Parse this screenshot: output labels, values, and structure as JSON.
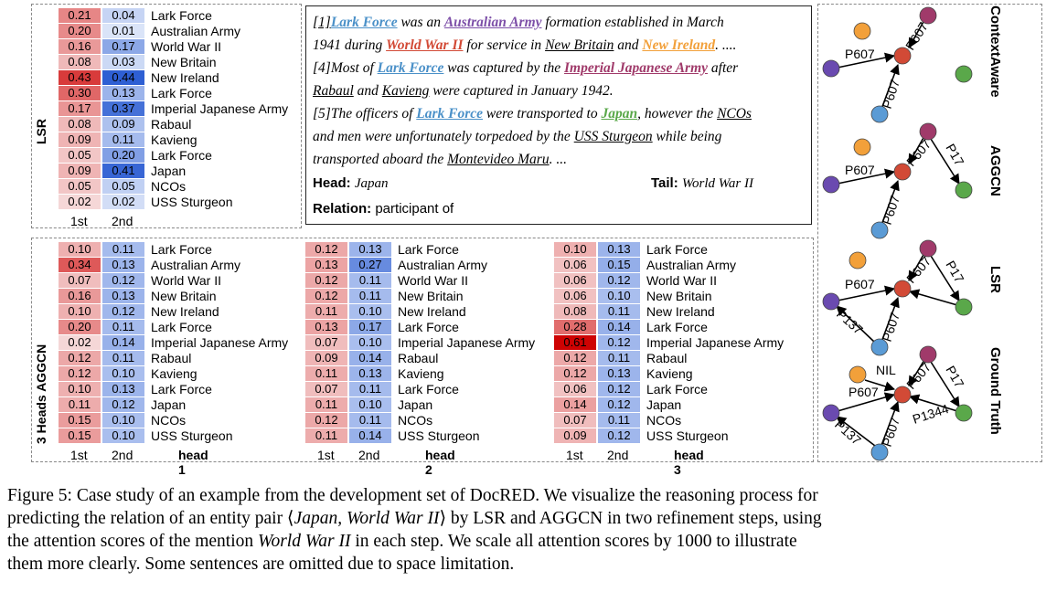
{
  "colors": {
    "lark": "#4a90c8",
    "australian": "#7d4fa8",
    "ww2": "#d24a36",
    "new_ireland": "#f2a03a",
    "ija": "#a03a6a",
    "japan": "#5aa84a"
  },
  "heatmaps": {
    "lsr": {
      "side_label": "LSR",
      "col_headers": [
        "1st",
        "2nd"
      ],
      "head_title": "",
      "rows": [
        {
          "label": "Lark Force",
          "v1": "0.21",
          "v2": "0.04"
        },
        {
          "label": "Australian Army",
          "v1": "0.20",
          "v2": "0.01"
        },
        {
          "label": "World War II",
          "v1": "0.16",
          "v2": "0.17"
        },
        {
          "label": "New Britain",
          "v1": "0.08",
          "v2": "0.03"
        },
        {
          "label": "New Ireland",
          "v1": "0.43",
          "v2": "0.44"
        },
        {
          "label": "Lark Force",
          "v1": "0.30",
          "v2": "0.13"
        },
        {
          "label": "Imperial Japanese Army",
          "v1": "0.17",
          "v2": "0.37"
        },
        {
          "label": "Rabaul",
          "v1": "0.08",
          "v2": "0.09"
        },
        {
          "label": "Kavieng",
          "v1": "0.09",
          "v2": "0.11"
        },
        {
          "label": "Lark Force",
          "v1": "0.05",
          "v2": "0.20"
        },
        {
          "label": "Japan",
          "v1": "0.09",
          "v2": "0.41"
        },
        {
          "label": "NCOs",
          "v1": "0.05",
          "v2": "0.05"
        },
        {
          "label": "USS Sturgeon",
          "v1": "0.02",
          "v2": "0.02"
        }
      ]
    },
    "head1": {
      "side_label": "3 Heads AGGCN",
      "col_headers": [
        "1st",
        "2nd"
      ],
      "head_title": "head 1",
      "rows": [
        {
          "label": "Lark Force",
          "v1": "0.10",
          "v2": "0.11"
        },
        {
          "label": "Australian Army",
          "v1": "0.34",
          "v2": "0.13"
        },
        {
          "label": "World War II",
          "v1": "0.07",
          "v2": "0.12"
        },
        {
          "label": "New Britain",
          "v1": "0.16",
          "v2": "0.13"
        },
        {
          "label": "New Ireland",
          "v1": "0.10",
          "v2": "0.12"
        },
        {
          "label": "Lark Force",
          "v1": "0.20",
          "v2": "0.11"
        },
        {
          "label": "Imperial Japanese Army",
          "v1": "0.02",
          "v2": "0.14"
        },
        {
          "label": "Rabaul",
          "v1": "0.12",
          "v2": "0.11"
        },
        {
          "label": "Kavieng",
          "v1": "0.12",
          "v2": "0.10"
        },
        {
          "label": "Lark Force",
          "v1": "0.10",
          "v2": "0.13"
        },
        {
          "label": "Japan",
          "v1": "0.11",
          "v2": "0.12"
        },
        {
          "label": "NCOs",
          "v1": "0.15",
          "v2": "0.10"
        },
        {
          "label": "USS Sturgeon",
          "v1": "0.15",
          "v2": "0.10"
        }
      ]
    },
    "head2": {
      "side_label": "",
      "col_headers": [
        "1st",
        "2nd"
      ],
      "head_title": "head 2",
      "rows": [
        {
          "label": "Lark Force",
          "v1": "0.12",
          "v2": "0.13"
        },
        {
          "label": "Australian Army",
          "v1": "0.13",
          "v2": "0.27"
        },
        {
          "label": "World War II",
          "v1": "0.12",
          "v2": "0.11"
        },
        {
          "label": "New Britain",
          "v1": "0.12",
          "v2": "0.11"
        },
        {
          "label": "New Ireland",
          "v1": "0.11",
          "v2": "0.10"
        },
        {
          "label": "Lark Force",
          "v1": "0.13",
          "v2": "0.17"
        },
        {
          "label": "Imperial Japanese Army",
          "v1": "0.07",
          "v2": "0.10"
        },
        {
          "label": "Rabaul",
          "v1": "0.09",
          "v2": "0.14"
        },
        {
          "label": "Kavieng",
          "v1": "0.11",
          "v2": "0.13"
        },
        {
          "label": "Lark Force",
          "v1": "0.07",
          "v2": "0.11"
        },
        {
          "label": "Japan",
          "v1": "0.11",
          "v2": "0.10"
        },
        {
          "label": "NCOs",
          "v1": "0.12",
          "v2": "0.11"
        },
        {
          "label": "USS Sturgeon",
          "v1": "0.11",
          "v2": "0.14"
        }
      ]
    },
    "head3": {
      "side_label": "",
      "col_headers": [
        "1st",
        "2nd"
      ],
      "head_title": "head 3",
      "rows": [
        {
          "label": "Lark Force",
          "v1": "0.10",
          "v2": "0.13"
        },
        {
          "label": "Australian Army",
          "v1": "0.06",
          "v2": "0.15"
        },
        {
          "label": "World War II",
          "v1": "0.06",
          "v2": "0.12"
        },
        {
          "label": "New Britain",
          "v1": "0.06",
          "v2": "0.10"
        },
        {
          "label": "New Ireland",
          "v1": "0.08",
          "v2": "0.11"
        },
        {
          "label": "Lark Force",
          "v1": "0.28",
          "v2": "0.14"
        },
        {
          "label": "Imperial Japanese Army",
          "v1": "0.61",
          "v2": "0.12"
        },
        {
          "label": "Rabaul",
          "v1": "0.12",
          "v2": "0.11"
        },
        {
          "label": "Kavieng",
          "v1": "0.12",
          "v2": "0.13"
        },
        {
          "label": "Lark Force",
          "v1": "0.06",
          "v2": "0.12"
        },
        {
          "label": "Japan",
          "v1": "0.14",
          "v2": "0.12"
        },
        {
          "label": "NCOs",
          "v1": "0.07",
          "v2": "0.11"
        },
        {
          "label": "USS Sturgeon",
          "v1": "0.09",
          "v2": "0.12"
        }
      ]
    }
  },
  "passage": {
    "s1": {
      "num": "[1]",
      "lark": "Lark Force",
      "t1": " was an ",
      "aus": "Australian Army",
      "t2": " formation established in March",
      "t3": "1941 during ",
      "ww2": "World War II",
      "t4": " for service in ",
      "nb": "New Britain",
      "t5": " and ",
      "ni": "New Ireland",
      "t6": ".  ...."
    },
    "s4": {
      "num": "[4]",
      "t1": "Most of ",
      "lark": "Lark Force",
      "t2": " was captured by the ",
      "ija": "Imperial Japanese Army",
      "t3": " after",
      "rab": "Rabaul",
      "t4": " and ",
      "kav": "Kavieng",
      "t5": " were captured in January 1942."
    },
    "s5": {
      "num": "[5]",
      "t1": "The officers of ",
      "lark": "Lark Force",
      "t2": " were transported to ",
      "japan": "Japan",
      "t3": ", however the ",
      "ncos": "NCOs",
      "t4": "and men were unfortunately torpedoed by the ",
      "uss": "USS Sturgeon",
      "t5": " while being",
      "t6": "transported aboard the ",
      "mont": "Montevideo Maru",
      "t7": ". ..."
    },
    "head_label": "Head:",
    "head_value": "Japan",
    "tail_label": "Tail:",
    "tail_value": "World War II",
    "relation_label": "Relation:",
    "relation_value": "participant of"
  },
  "graphs": {
    "contextaware": {
      "title": "ContextAware",
      "edges": [
        "P607",
        "P607",
        "P607"
      ]
    },
    "aggcn": {
      "title": "AGGCN",
      "edges": [
        "P607",
        "P607",
        "P607",
        "P17"
      ]
    },
    "lsr": {
      "title": "LSR",
      "edges": [
        "P607",
        "P607",
        "P607",
        "P17",
        "P137"
      ]
    },
    "ground_truth": {
      "title": "Ground Truth",
      "edges": [
        "NIL",
        "P607",
        "P607",
        "P17",
        "P607",
        "P1344",
        "P137"
      ]
    }
  },
  "caption": {
    "p1": "Figure 5: Case study of an example from the development set of DocRED. We visualize the reasoning process for",
    "p2a": "predicting the relation of an entity pair ⟨",
    "p2b": "Japan, World War II",
    "p2c": "⟩ by LSR and AGGCN in two refinement steps, using",
    "p3a": "the attention scores of the mention ",
    "p3b": "World War II",
    "p3c": " in each step.  We scale all attention scores by 1000 to illustrate",
    "p4": "them more clearly. Some sentences are omitted due to space limitation."
  }
}
